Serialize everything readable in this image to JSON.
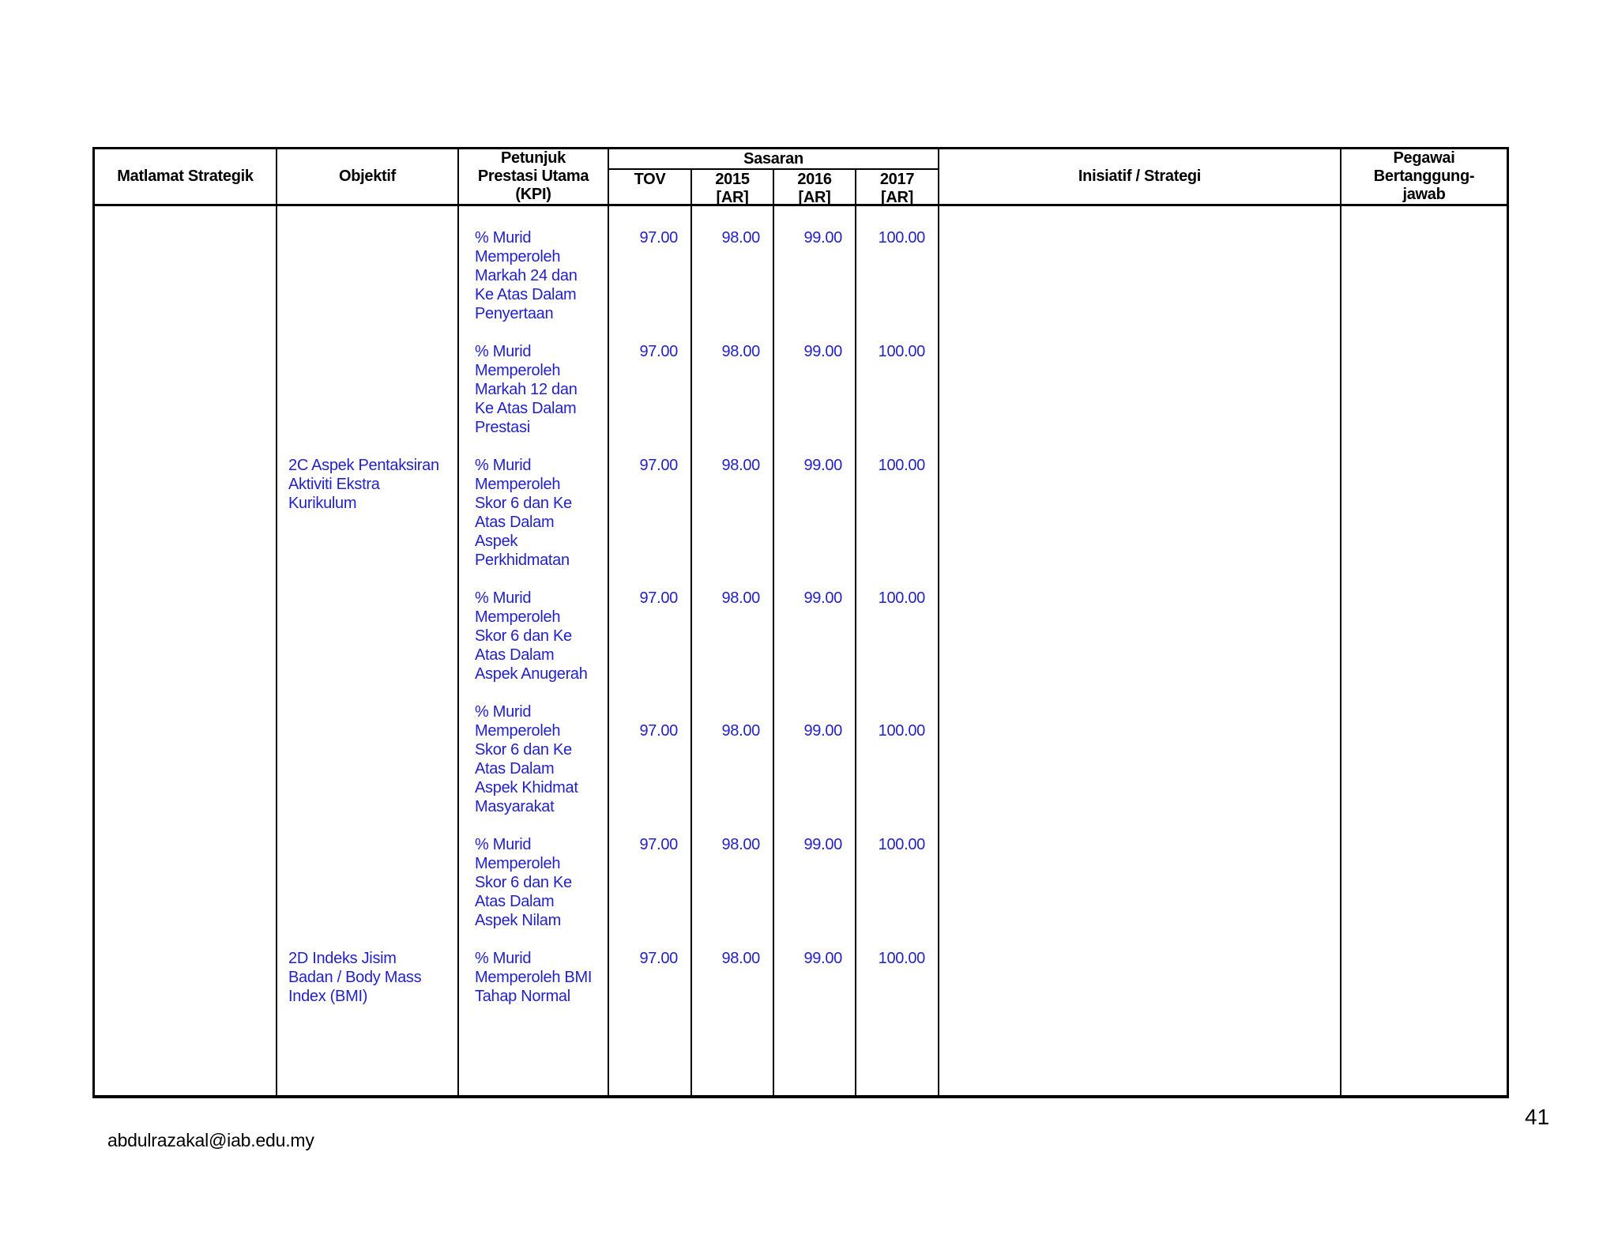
{
  "page": {
    "footer_email": "abdulrazakal@iab.edu.my",
    "number": "41"
  },
  "colors": {
    "body_text": "#2222c8",
    "header_text": "#000000",
    "border": "#000000",
    "background": "#ffffff"
  },
  "table": {
    "headers": {
      "matlamat": "Matlamat Strategik",
      "objektif": "Objektif",
      "kpi": "Petunjuk\nPrestasi Utama\n(KPI)",
      "sasaran": "Sasaran",
      "tov": "TOV",
      "y2015": "2015\n[AR]",
      "y2016": "2016\n[AR]",
      "y2017": "2017\n[AR]",
      "inisiatif": "Inisiatif / Strategi",
      "pegawai": "Pegawai\nBertanggung-\njawab"
    },
    "rows": [
      {
        "objektif": "",
        "kpi": "% Murid\nMemperoleh\nMarkah 24 dan\nKe Atas Dalam\nPenyertaan",
        "tov": "97.00",
        "y2015": "98.00",
        "y2016": "99.00",
        "y2017": "100.00"
      },
      {
        "objektif": "",
        "kpi": "% Murid\nMemperoleh\nMarkah 12 dan\nKe Atas Dalam\nPrestasi",
        "tov": "97.00",
        "y2015": "98.00",
        "y2016": "99.00",
        "y2017": "100.00"
      },
      {
        "objektif": "2C Aspek Pentaksiran\nAktiviti Ekstra\nKurikulum",
        "kpi": "% Murid\nMemperoleh\nSkor 6 dan Ke\nAtas Dalam\nAspek\nPerkhidmatan",
        "tov": "97.00",
        "y2015": "98.00",
        "y2016": "99.00",
        "y2017": "100.00"
      },
      {
        "objektif": "",
        "kpi": "% Murid\nMemperoleh\nSkor 6 dan Ke\nAtas Dalam\nAspek Anugerah",
        "tov": "97.00",
        "y2015": "98.00",
        "y2016": "99.00",
        "y2017": "100.00"
      },
      {
        "objektif": "",
        "kpi": "% Murid\nMemperoleh\nSkor 6 dan Ke\nAtas Dalam\nAspek Khidmat\nMasyarakat",
        "tov": "97.00",
        "y2015": "98.00",
        "y2016": "99.00",
        "y2017": "100.00"
      },
      {
        "objektif": "",
        "kpi": "% Murid\nMemperoleh\nSkor 6 dan Ke\nAtas Dalam\nAspek Nilam",
        "tov": "97.00",
        "y2015": "98.00",
        "y2016": "99.00",
        "y2017": "100.00"
      },
      {
        "objektif": "2D Indeks Jisim\nBadan / Body Mass\nIndex (BMI)",
        "kpi": "% Murid\nMemperoleh BMI\nTahap Normal",
        "tov": "97.00",
        "y2015": "98.00",
        "y2016": "99.00",
        "y2017": "100.00"
      }
    ]
  }
}
